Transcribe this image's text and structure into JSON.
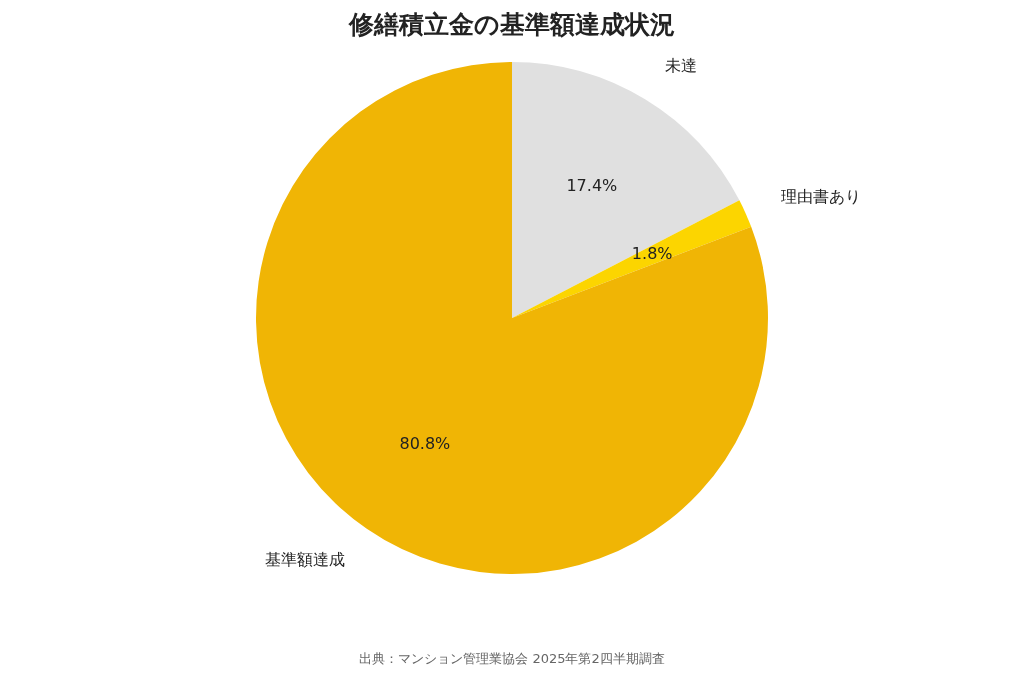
{
  "chart_data": {
    "type": "pie",
    "title": "修繕積立金の基準額達成状況",
    "categories": [
      "未達",
      "理由書あり",
      "基準額達成"
    ],
    "values": [
      17.4,
      1.8,
      80.8
    ],
    "colors": [
      "#e0e0e0",
      "#fcd500",
      "#f0b505"
    ],
    "value_labels": [
      "17.4%",
      "1.8%",
      "80.8%"
    ],
    "annotations": [
      "出典：マンション管理業協会 2025年第2四半期調査"
    ]
  }
}
